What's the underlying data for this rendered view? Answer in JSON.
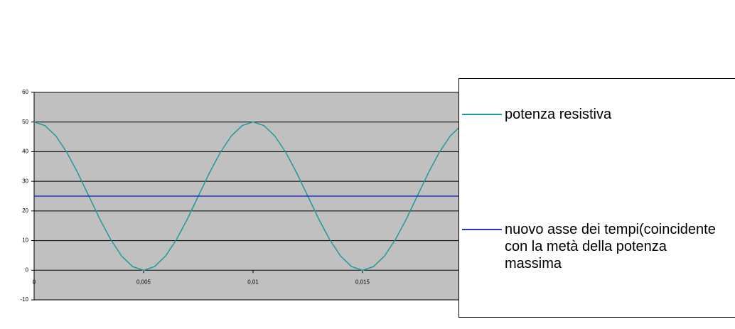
{
  "chart_data": {
    "type": "line",
    "x": [
      0,
      0.0005,
      0.001,
      0.0015,
      0.002,
      0.0025,
      0.003,
      0.0035,
      0.004,
      0.0045,
      0.005,
      0.0055,
      0.006,
      0.0065,
      0.007,
      0.0075,
      0.008,
      0.0085,
      0.009,
      0.0095,
      0.01,
      0.0105,
      0.011,
      0.0115,
      0.012,
      0.0125,
      0.013,
      0.0135,
      0.014,
      0.0145,
      0.015,
      0.0155,
      0.016,
      0.0165,
      0.017,
      0.0175,
      0.018,
      0.0185,
      0.019,
      0.0195,
      0.02
    ],
    "series": [
      {
        "name": "potenza resistiva",
        "color": "#1f9a9a",
        "values": [
          50,
          48.78,
          45.23,
          39.69,
          32.73,
          25,
          17.27,
          10.31,
          4.77,
          1.22,
          0,
          1.22,
          4.77,
          10.31,
          17.27,
          25,
          32.73,
          39.69,
          45.23,
          48.78,
          50,
          48.78,
          45.23,
          39.69,
          32.73,
          25,
          17.27,
          10.31,
          4.77,
          1.22,
          0,
          1.22,
          4.77,
          10.31,
          17.27,
          25,
          32.73,
          39.69,
          45.23,
          48.78,
          50
        ]
      },
      {
        "name": "nuovo asse dei tempi(coincidente con la metà della potenza massima",
        "color": "#2233cc",
        "values": [
          25,
          25,
          25,
          25,
          25,
          25,
          25,
          25,
          25,
          25,
          25,
          25,
          25,
          25,
          25,
          25,
          25,
          25,
          25,
          25,
          25,
          25,
          25,
          25,
          25,
          25,
          25,
          25,
          25,
          25,
          25,
          25,
          25,
          25,
          25,
          25,
          25,
          25,
          25,
          25,
          25
        ]
      }
    ],
    "xlim": [
      0,
      0.02
    ],
    "xticks": [
      0,
      {
        "value": 0.005,
        "label": "0,005"
      },
      {
        "value": 0.01,
        "label": "0,01"
      },
      {
        "value": 0.015,
        "label": "0,015"
      }
    ],
    "ylim": [
      -10,
      60
    ],
    "yticks": [
      -10,
      0,
      10,
      20,
      30,
      40,
      50,
      60
    ],
    "grid": true,
    "legend": "right"
  }
}
